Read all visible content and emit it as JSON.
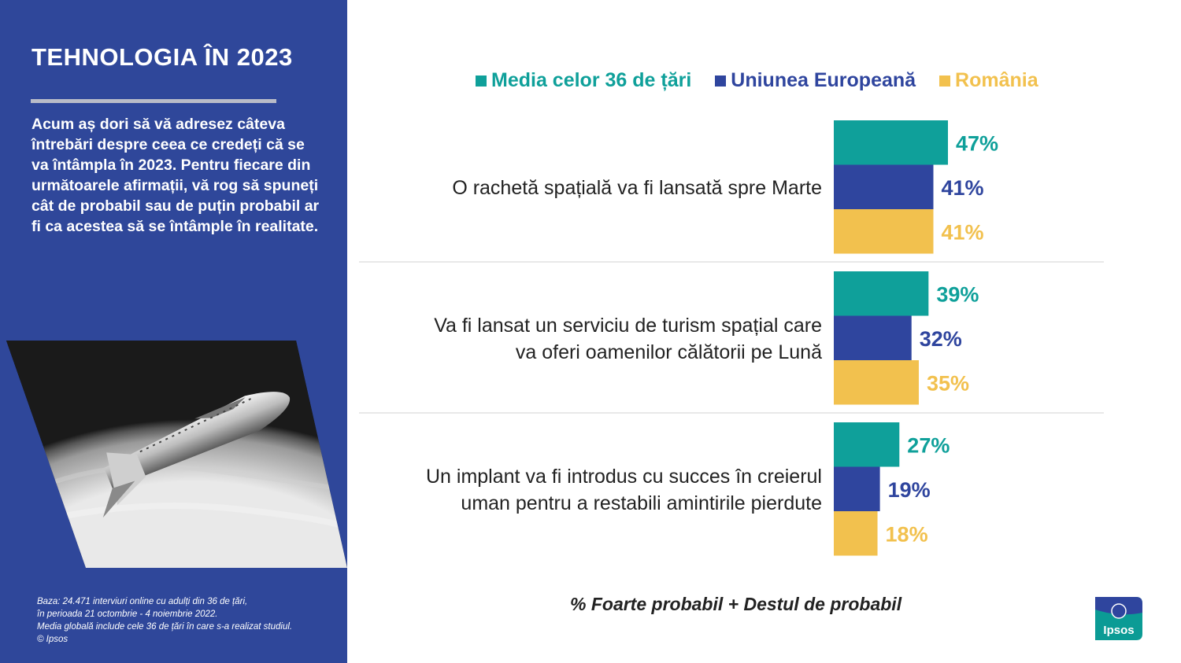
{
  "sidebar": {
    "title": "TEHNOLOGIA ÎN 2023",
    "intro": "Acum aș dori să vă adresez câteva întrebări despre ceea ce credeți că se va întâmpla în 2023. Pentru fiecare din următoarele afirmații, vă rog să spuneți cât de probabil sau de puțin probabil ar fi ca acestea să se întâmple în realitate.",
    "footnote": "Baza: 24.471 interviuri online cu adulți din 36 de țări,\nîn perioada 21 octombrie - 4 noiembrie 2022.\nMedia globală include cele 36 de țări în care s-a realizat studiul.\n© Ipsos"
  },
  "measure_note": "% Foarte probabil + Destul de probabil",
  "logo_text": "Ipsos",
  "colors": {
    "sidebar": "#2f479a",
    "teal": "#0fa09a",
    "blue": "#2f459e",
    "yellow": "#f2c14e"
  },
  "chart_data": {
    "type": "bar",
    "orientation": "horizontal",
    "categories": [
      "O rachetă spațială va fi lansată spre Marte",
      "Va fi lansat un serviciu de turism spațial care va oferi oamenilor călătorii pe Lună",
      "Un implant va fi introdus cu succes în creierul uman pentru a restabili amintirile pierdute"
    ],
    "category_lines": [
      [
        "O rachetă spațială va fi lansată spre Marte"
      ],
      [
        "Va fi lansat un serviciu de turism spațial care",
        "va oferi oamenilor călătorii pe Lună"
      ],
      [
        "Un implant va fi introdus cu succes în creierul",
        "uman pentru a restabili amintirile pierdute"
      ]
    ],
    "series": [
      {
        "name": "Media celor 36 de țări",
        "color": "#0fa09a",
        "values": [
          47,
          39,
          27
        ],
        "labels": [
          "47%",
          "39%",
          "27%"
        ]
      },
      {
        "name": "Uniunea Europeană",
        "color": "#2f459e",
        "values": [
          41,
          32,
          19
        ],
        "labels": [
          "41%",
          "32%",
          "19%"
        ]
      },
      {
        "name": "România",
        "color": "#f2c14e",
        "values": [
          41,
          35,
          18
        ],
        "labels": [
          "41%",
          "35%",
          "18%"
        ]
      }
    ],
    "unit": "%",
    "legend": "top",
    "grid": false
  }
}
